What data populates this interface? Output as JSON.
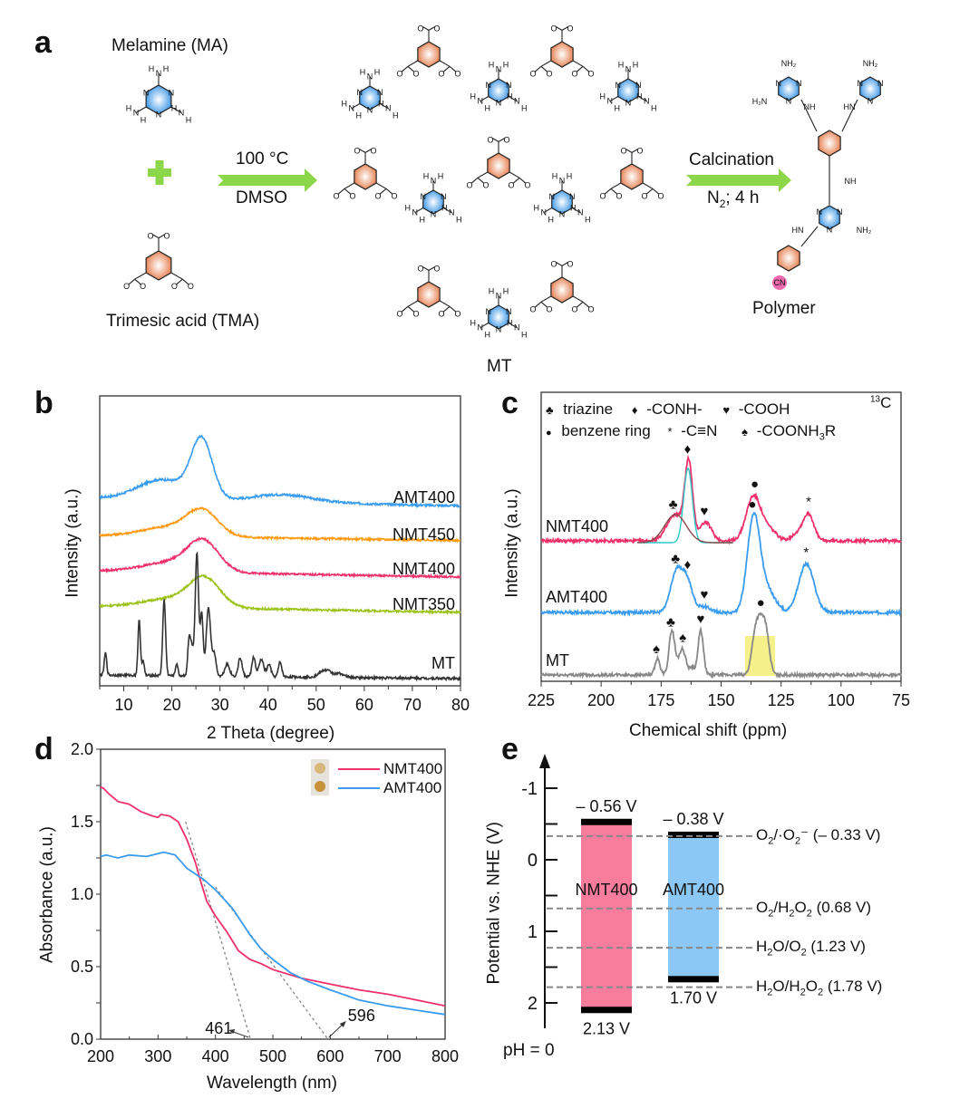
{
  "panel_a": {
    "letter": "a",
    "melamine_label": "Melamine (MA)",
    "tma_label": "Trimesic acid (TMA)",
    "step1_top": "100 °C",
    "step1_bottom": "DMSO",
    "mt_label": "MT",
    "step2_top": "Calcination",
    "step2_bottom_main": "N",
    "step2_bottom_sub": "2",
    "step2_bottom_rest": "; 4 h",
    "polymer_label": "Polymer",
    "atoms": {
      "N": "N",
      "H": "H",
      "O": "O",
      "NH2": "NH₂",
      "H2N": "H₂N",
      "NH": "NH",
      "HN": "HN",
      "C": "C",
      "CN": "CN"
    },
    "colors": {
      "triazine": "#4a9ee8",
      "benzene": "#e8875a",
      "arrow": "#8cd64a",
      "plus": "#8cd64a",
      "cn_circle": "#e8459a"
    }
  },
  "chart_data": [
    {
      "panel": "b",
      "type": "line",
      "xlabel": "2 Theta (degree)",
      "ylabel": "Intensity (a.u.)",
      "xlim": [
        5,
        80
      ],
      "xticks": [
        10,
        20,
        30,
        40,
        50,
        60,
        70,
        80
      ],
      "yticks_shown": false,
      "grid": false,
      "series": [
        {
          "name": "AMT400",
          "color": "#3a9cf0",
          "offset": 4,
          "peaks": [
            {
              "x": 26.2,
              "height": 0.95,
              "width": 2.2
            },
            {
              "x": 18,
              "height": 0.32,
              "width": 5
            },
            {
              "x": 43,
              "height": 0.12,
              "width": 6
            }
          ],
          "baseline_start": 0.05,
          "baseline_end": -0.08
        },
        {
          "name": "NMT450",
          "color": "#ff9a12",
          "offset": 3,
          "peaks": [
            {
              "x": 26.4,
              "height": 0.42,
              "width": 3.2
            },
            {
              "x": 20,
              "height": 0.18,
              "width": 6
            }
          ],
          "baseline_start": 0.03,
          "baseline_end": -0.06
        },
        {
          "name": "NMT400",
          "color": "#f0306a",
          "offset": 2,
          "peaks": [
            {
              "x": 26.5,
              "height": 0.52,
              "width": 3.2
            },
            {
              "x": 20,
              "height": 0.18,
              "width": 6
            }
          ],
          "baseline_start": 0.03,
          "baseline_end": -0.08
        },
        {
          "name": "NMT350",
          "color": "#9cc218",
          "offset": 1,
          "peaks": [
            {
              "x": 26.8,
              "height": 0.5,
              "width": 3.2
            },
            {
              "x": 20,
              "height": 0.16,
              "width": 6
            }
          ],
          "baseline_start": 0.03,
          "baseline_end": -0.08
        },
        {
          "name": "MT",
          "color": "#333333",
          "offset": 0,
          "peaks": [
            {
              "x": 6.2,
              "height": 0.18,
              "width": 0.25
            },
            {
              "x": 13.2,
              "height": 0.45,
              "width": 0.25
            },
            {
              "x": 14.0,
              "height": 0.12,
              "width": 0.25
            },
            {
              "x": 18.4,
              "height": 0.62,
              "width": 0.3
            },
            {
              "x": 21.0,
              "height": 0.1,
              "width": 0.25
            },
            {
              "x": 23.6,
              "height": 0.3,
              "width": 0.3
            },
            {
              "x": 24.2,
              "height": 0.2,
              "width": 0.3
            },
            {
              "x": 25.2,
              "height": 1.0,
              "width": 0.35
            },
            {
              "x": 26.2,
              "height": 0.5,
              "width": 0.3
            },
            {
              "x": 27.6,
              "height": 0.56,
              "width": 0.45
            },
            {
              "x": 28.8,
              "height": 0.18,
              "width": 0.4
            },
            {
              "x": 31.5,
              "height": 0.1,
              "width": 0.5
            },
            {
              "x": 34.2,
              "height": 0.15,
              "width": 0.4
            },
            {
              "x": 37.0,
              "height": 0.16,
              "width": 0.35
            },
            {
              "x": 38.6,
              "height": 0.14,
              "width": 0.5
            },
            {
              "x": 40.2,
              "height": 0.1,
              "width": 0.4
            },
            {
              "x": 42.5,
              "height": 0.12,
              "width": 0.35
            },
            {
              "x": 52.0,
              "height": 0.06,
              "width": 1.2
            },
            {
              "x": 55.0,
              "height": 0.03,
              "width": 0.8
            }
          ],
          "baseline_start": 0.0,
          "baseline_end": -0.03
        }
      ]
    },
    {
      "panel": "c",
      "type": "line",
      "title_corner_sup": "13",
      "title_corner": "C",
      "xlabel": "Chemical shift (ppm)",
      "ylabel": "Intensity (a.u.)",
      "xlim": [
        225,
        75
      ],
      "xticks": [
        225,
        200,
        175,
        150,
        125,
        100,
        75
      ],
      "grid": false,
      "legend": [
        {
          "symbol": "♣",
          "label": "-triazine",
          "text": "triazine"
        },
        {
          "symbol": "♦",
          "text": "-CONH-"
        },
        {
          "symbol": "♥",
          "text": "-COOH"
        },
        {
          "symbol": "●",
          "text": "benzene ring"
        },
        {
          "symbol": "*",
          "text": "-C≡N"
        },
        {
          "symbol": "♠",
          "text": "-COONH",
          "text_sub": "3",
          "text_after": "R"
        }
      ],
      "series": [
        {
          "name": "NMT400",
          "color": "#f0306a",
          "offset": 2,
          "peaks": [
            {
              "x": 163.5,
              "height": 1.0,
              "width": 1.6
            },
            {
              "x": 169,
              "height": 0.35,
              "width": 3.5
            },
            {
              "x": 156.5,
              "height": 0.25,
              "width": 2.5
            },
            {
              "x": 136.5,
              "height": 0.6,
              "width": 3.0
            },
            {
              "x": 130,
              "height": 0.15,
              "width": 3
            },
            {
              "x": 118,
              "height": 0.1,
              "width": 2.5
            },
            {
              "x": 113.5,
              "height": 0.35,
              "width": 2.2
            }
          ],
          "markers": [
            {
              "symbol": "♣",
              "x": 170
            },
            {
              "symbol": "♦",
              "x": 164
            },
            {
              "symbol": "♥",
              "x": 157
            },
            {
              "symbol": "●",
              "x": 136
            },
            {
              "symbol": "*",
              "x": 113.5
            }
          ],
          "fit_components": [
            {
              "color": "#2ec8c8",
              "x": 163.8,
              "height": 1.0,
              "width": 1.8
            },
            {
              "color": "#8b4a4a",
              "x": 169,
              "height": 0.38,
              "width": 4.5
            }
          ]
        },
        {
          "name": "AMT400",
          "color": "#3a9cf0",
          "offset": 1,
          "peaks": [
            {
              "x": 168.5,
              "height": 0.55,
              "width": 2.5
            },
            {
              "x": 164,
              "height": 0.38,
              "width": 2.2
            },
            {
              "x": 157,
              "height": 0.08,
              "width": 2.5
            },
            {
              "x": 136.5,
              "height": 1.25,
              "width": 2.6
            },
            {
              "x": 131,
              "height": 0.3,
              "width": 3.5
            },
            {
              "x": 114.5,
              "height": 0.65,
              "width": 3.2
            }
          ],
          "markers": [
            {
              "symbol": "♣",
              "x": 169
            },
            {
              "symbol": "♦",
              "x": 164
            },
            {
              "symbol": "♥",
              "x": 157
            },
            {
              "symbol": "●",
              "x": 137
            },
            {
              "symbol": "*",
              "x": 114.5
            }
          ]
        },
        {
          "name": "MT",
          "color": "#888888",
          "offset": 0,
          "peaks": [
            {
              "x": 176.5,
              "height": 0.22,
              "width": 1.0
            },
            {
              "x": 170.5,
              "height": 0.6,
              "width": 1.2
            },
            {
              "x": 166.2,
              "height": 0.35,
              "width": 1.5
            },
            {
              "x": 162,
              "height": 0.1,
              "width": 1.0
            },
            {
              "x": 158.5,
              "height": 0.6,
              "width": 1.1
            },
            {
              "x": 135.5,
              "height": 0.62,
              "width": 1.6
            },
            {
              "x": 131.5,
              "height": 0.62,
              "width": 1.5
            },
            {
              "x": 133.5,
              "height": 0.28,
              "width": 1.2
            }
          ],
          "markers": [
            {
              "symbol": "♠",
              "x": 177
            },
            {
              "symbol": "♣",
              "x": 171
            },
            {
              "symbol": "♠",
              "x": 166
            },
            {
              "symbol": "♥",
              "x": 158.5
            },
            {
              "symbol": "●",
              "x": 133.5
            }
          ],
          "highlight": {
            "x_from": 140,
            "x_to": 127.5,
            "color": "#f5f08a"
          }
        }
      ]
    },
    {
      "panel": "d",
      "type": "line",
      "xlabel": "Wavelength (nm)",
      "ylabel": "Absorbance (a.u.)",
      "xlim": [
        200,
        800
      ],
      "ylim": [
        0.0,
        2.0
      ],
      "xticks": [
        200,
        300,
        400,
        500,
        600,
        700,
        800
      ],
      "yticks": [
        "0.0",
        "0.5",
        "1.0",
        "1.5",
        "2.0"
      ],
      "legend_position": "top-right",
      "series": [
        {
          "name": "NMT400",
          "color": "#f0306a",
          "x": [
            200,
            205,
            215,
            230,
            250,
            270,
            290,
            300,
            305,
            320,
            335,
            350,
            365,
            375,
            385,
            400,
            420,
            440,
            460,
            480,
            500,
            550,
            600,
            650,
            700,
            750,
            800
          ],
          "y": [
            1.74,
            1.73,
            1.69,
            1.64,
            1.62,
            1.57,
            1.54,
            1.53,
            1.55,
            1.54,
            1.5,
            1.38,
            1.22,
            1.08,
            0.95,
            0.85,
            0.74,
            0.61,
            0.55,
            0.52,
            0.48,
            0.42,
            0.38,
            0.34,
            0.31,
            0.27,
            0.23
          ]
        },
        {
          "name": "AMT400",
          "color": "#3a9cf0",
          "x": [
            200,
            210,
            230,
            250,
            280,
            300,
            310,
            330,
            350,
            380,
            400,
            430,
            460,
            480,
            500,
            530,
            560,
            600,
            650,
            700,
            750,
            800
          ],
          "y": [
            1.26,
            1.27,
            1.25,
            1.27,
            1.26,
            1.28,
            1.29,
            1.27,
            1.18,
            1.1,
            1.03,
            0.9,
            0.72,
            0.62,
            0.55,
            0.46,
            0.4,
            0.34,
            0.27,
            0.23,
            0.2,
            0.17
          ]
        }
      ],
      "tangents": [
        {
          "from": [
            348,
            1.5
          ],
          "to": [
            461,
            0.0
          ]
        },
        {
          "from": [
            400,
            1.05
          ],
          "to": [
            596,
            0.0
          ]
        }
      ],
      "annotations": [
        {
          "text": "461",
          "x": 461
        },
        {
          "text": "596",
          "x": 596
        }
      ]
    },
    {
      "panel": "e",
      "type": "bar",
      "ylabel": "Potential vs. NHE (V)",
      "yticks": [
        "-1",
        "0",
        "1",
        "2"
      ],
      "ylim_inverted": [
        -1.5,
        2.3
      ],
      "footnote": "pH = 0",
      "bands": [
        {
          "name": "NMT400",
          "cb": -0.56,
          "vb": 2.13,
          "cb_label": "– 0.56 V",
          "vb_label": "2.13 V",
          "color": "#f87c9c"
        },
        {
          "name": "AMT400",
          "cb": -0.38,
          "vb": 1.7,
          "cb_label": "– 0.38 V",
          "vb_label": "1.70 V",
          "color": "#8cc8f5"
        }
      ],
      "reference_levels": [
        {
          "value": -0.33,
          "parts": [
            [
              "O",
              "2",
              "/·O",
              "2",
              "⁻ (– 0.33 V)"
            ]
          ]
        },
        {
          "value": 0.68,
          "parts": [
            [
              "O",
              "2",
              "/H",
              "2",
              "O",
              "2",
              " (0.68 V)"
            ]
          ]
        },
        {
          "value": 1.23,
          "parts": [
            [
              "H",
              "2",
              "O/O",
              "2",
              " (1.23 V)"
            ]
          ]
        },
        {
          "value": 1.78,
          "parts": [
            [
              "H",
              "2",
              "O/H",
              "2",
              "O",
              "2",
              " (1.78 V)"
            ]
          ]
        }
      ]
    }
  ],
  "panel_letters": {
    "b": "b",
    "c": "c",
    "d": "d",
    "e": "e"
  }
}
